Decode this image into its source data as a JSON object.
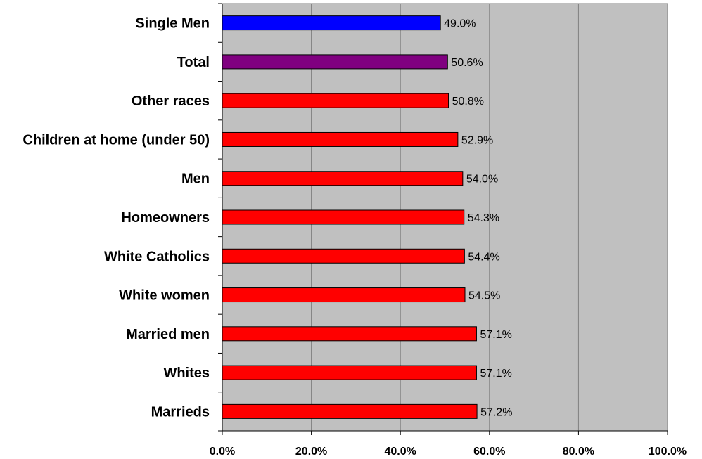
{
  "chart_data": {
    "type": "bar",
    "orientation": "horizontal",
    "title": "",
    "xlabel": "",
    "ylabel": "",
    "xlim": [
      0,
      100
    ],
    "grid": true,
    "categories": [
      "Single Men",
      "Total",
      "Other races",
      "Children at home (under 50)",
      "Men",
      "Homeowners",
      "White Catholics",
      "White women",
      "Married men",
      "Whites",
      "Marrieds"
    ],
    "values": [
      49.0,
      50.6,
      50.8,
      52.9,
      54.0,
      54.3,
      54.4,
      54.5,
      57.1,
      57.1,
      57.2
    ],
    "value_labels": [
      "49.0%",
      "50.6%",
      "50.8%",
      "52.9%",
      "54.0%",
      "54.3%",
      "54.4%",
      "54.5%",
      "57.1%",
      "57.1%",
      "57.2%"
    ],
    "bar_colors": [
      "#0000ff",
      "#800080",
      "#ff0000",
      "#ff0000",
      "#ff0000",
      "#ff0000",
      "#ff0000",
      "#ff0000",
      "#ff0000",
      "#ff0000",
      "#ff0000"
    ],
    "x_ticks": [
      0,
      20,
      40,
      60,
      80,
      100
    ],
    "x_tick_labels": [
      "0.0%",
      "20.0%",
      "40.0%",
      "60.0%",
      "80.0%",
      "100.0%"
    ],
    "plot_background": "#c0c0c0"
  }
}
